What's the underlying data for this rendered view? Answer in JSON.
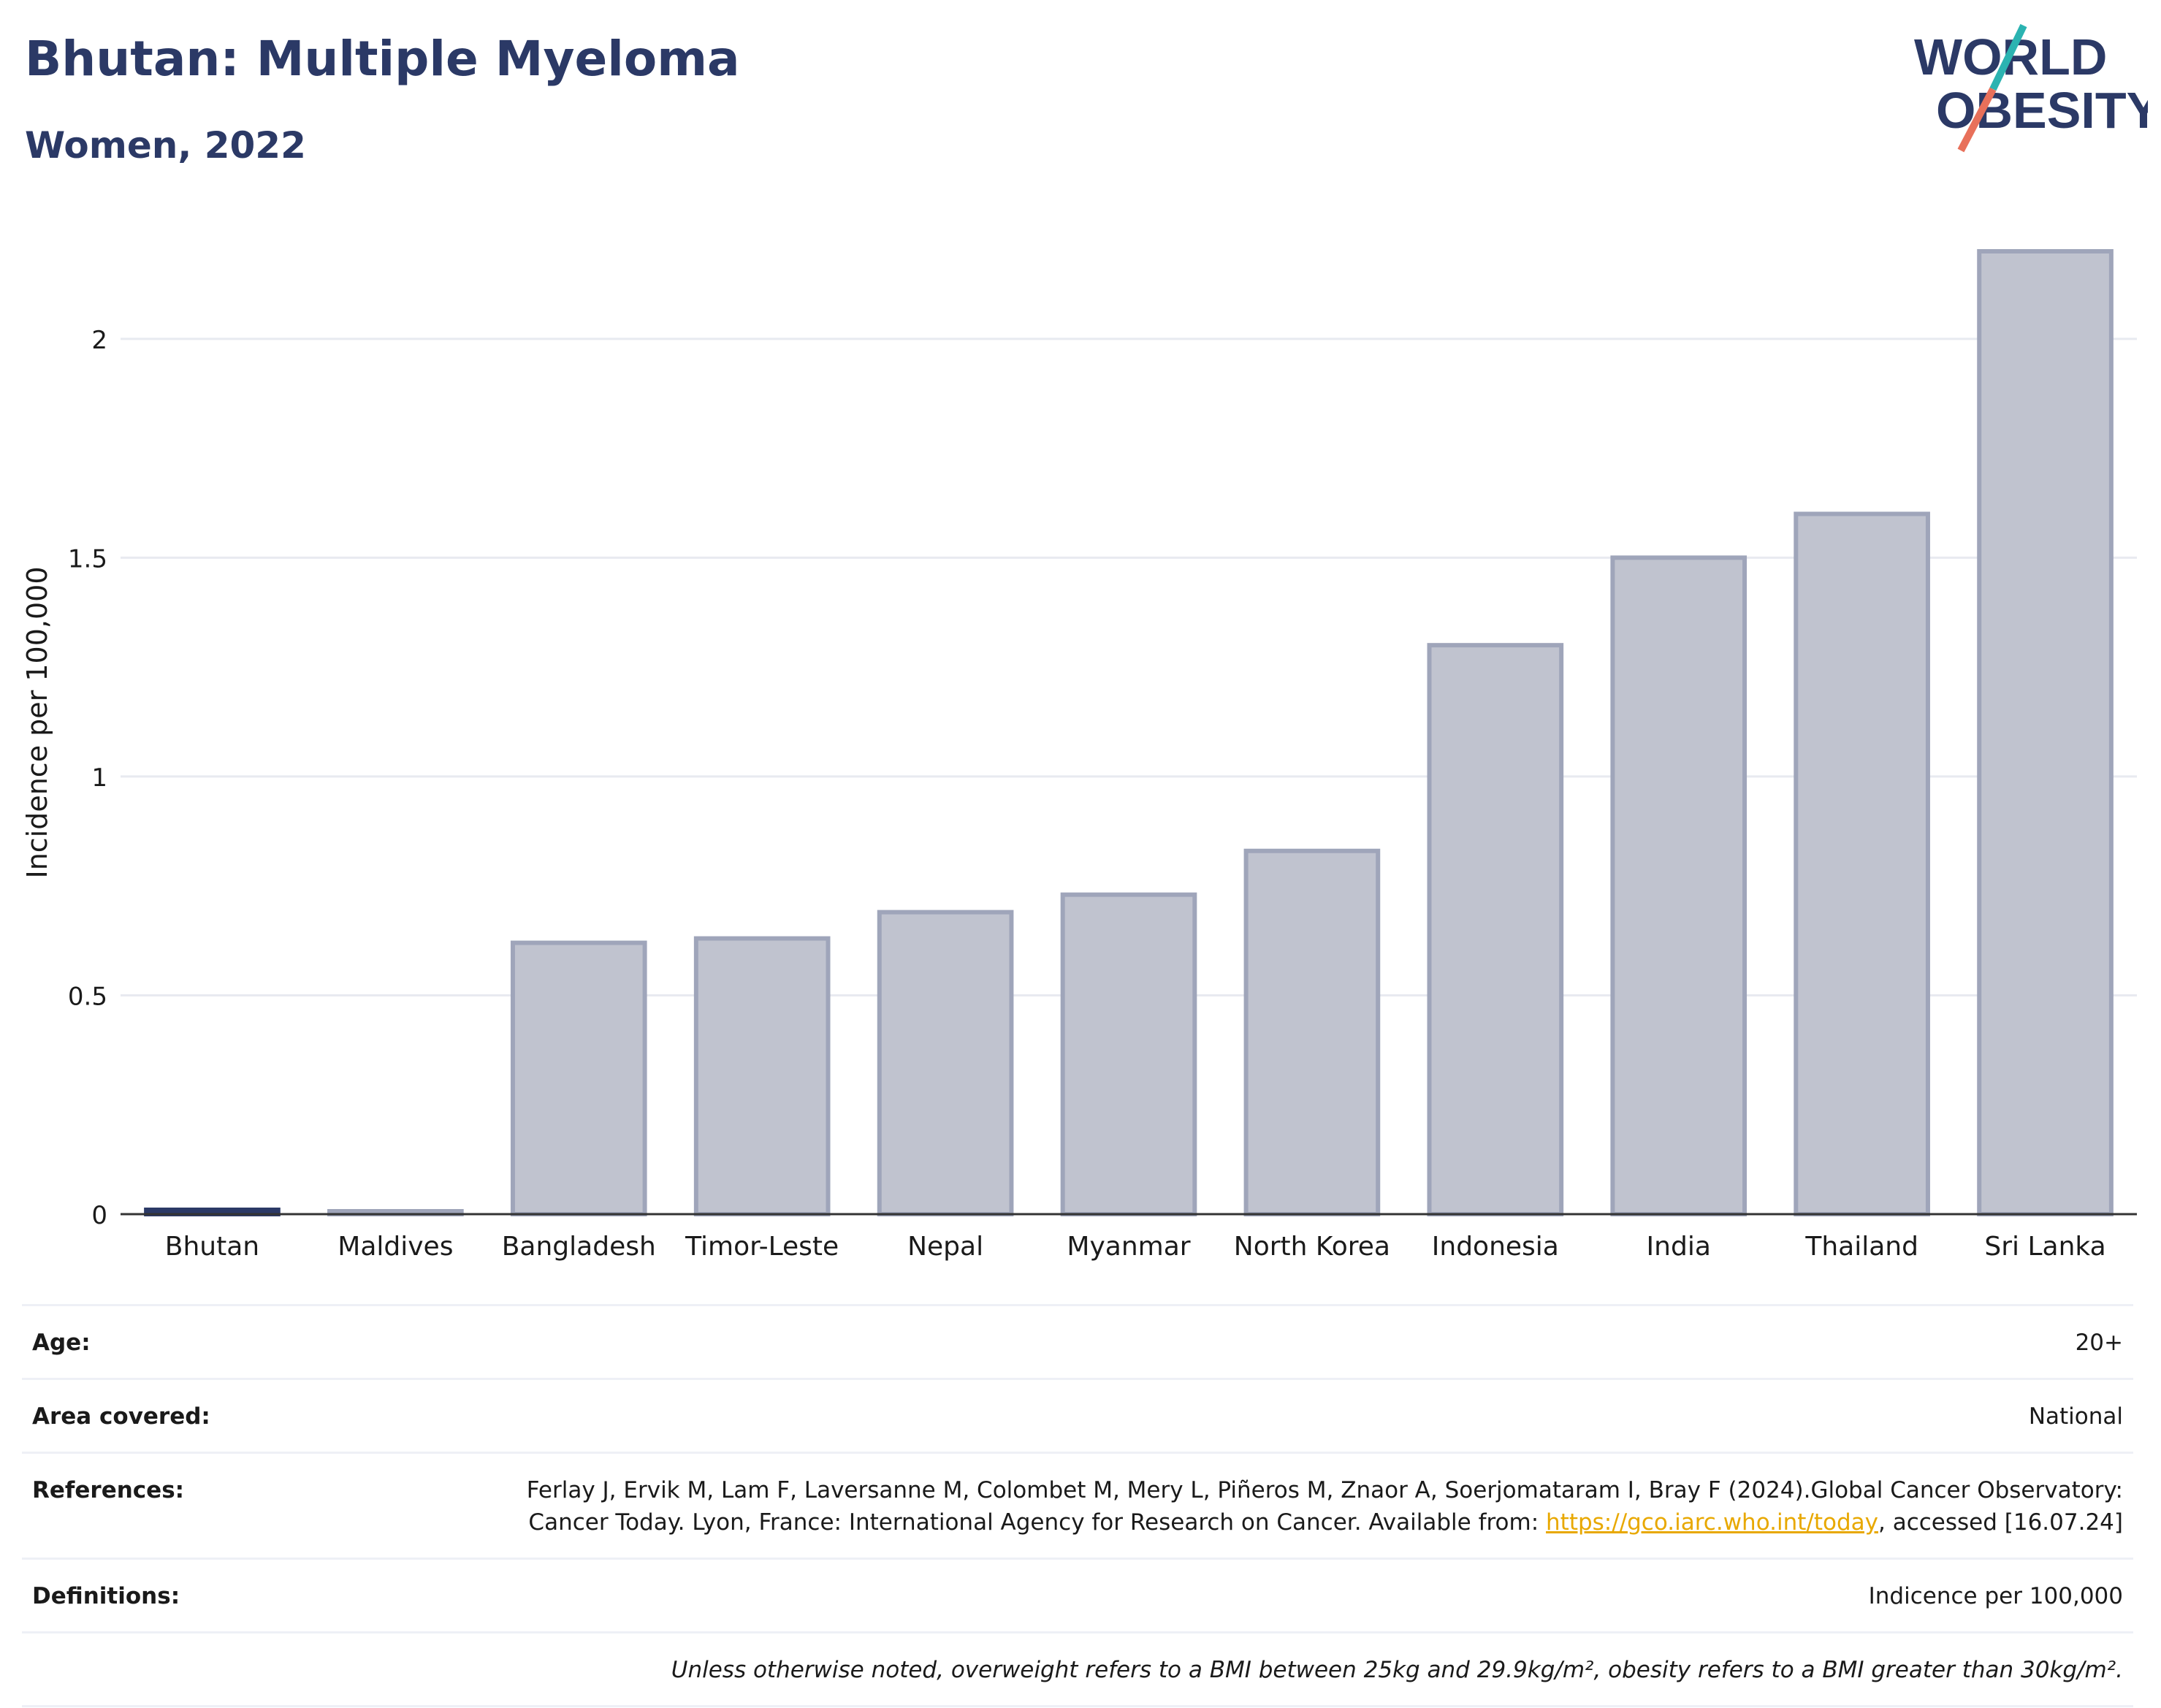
{
  "header": {
    "title": "Bhutan: Multiple Myeloma",
    "subtitle": "Women, 2022"
  },
  "logo": {
    "line1": "WORLD",
    "line2": "OBESITY",
    "colors": {
      "text": "#2b3966",
      "slash_top": "#2bb3b1",
      "slash_bottom": "#e8705a"
    }
  },
  "chart_data": {
    "type": "bar",
    "categories": [
      "Bhutan",
      "Maldives",
      "Bangladesh",
      "Timor-Leste",
      "Nepal",
      "Myanmar",
      "North Korea",
      "Indonesia",
      "India",
      "Thailand",
      "Sri Lanka"
    ],
    "values": [
      0.01,
      0.005,
      0.62,
      0.63,
      0.69,
      0.73,
      0.83,
      1.3,
      1.5,
      1.6,
      2.2
    ],
    "highlight": "Bhutan",
    "ylabel": "Incidence per 100,000",
    "xlabel": "",
    "ylim": [
      0,
      2.2
    ],
    "yticks": [
      0,
      0.5,
      1,
      1.5,
      2
    ],
    "ytick_labels": [
      "0",
      "0.5",
      "1",
      "1.5",
      "2"
    ],
    "grid": true,
    "colors": {
      "bar": "#c0c3cf",
      "bar_edge": "#9fa5ba",
      "highlight": "#2b3966"
    }
  },
  "info": {
    "age_label": "Age:",
    "age_value": "20+",
    "area_label": "Area covered:",
    "area_value": "National",
    "references_label": "References:",
    "references_pre": "Ferlay J, Ervik M, Lam F, Laversanne M, Colombet M, Mery L, Piñeros M, Znaor A, Soerjomataram I, Bray F (2024).Global Cancer Observatory: Cancer Today. Lyon, France: International Agency for Research on Cancer. Available from: ",
    "references_link": "https://gco.iarc.who.int/today",
    "references_post": ", accessed [16.07.24]",
    "definitions_label": "Definitions:",
    "definitions_value": "Indicence per 100,000",
    "note": "Unless otherwise noted, overweight refers to a BMI between 25kg and 29.9kg/m², obesity refers to a BMI greater than 30kg/m²."
  }
}
